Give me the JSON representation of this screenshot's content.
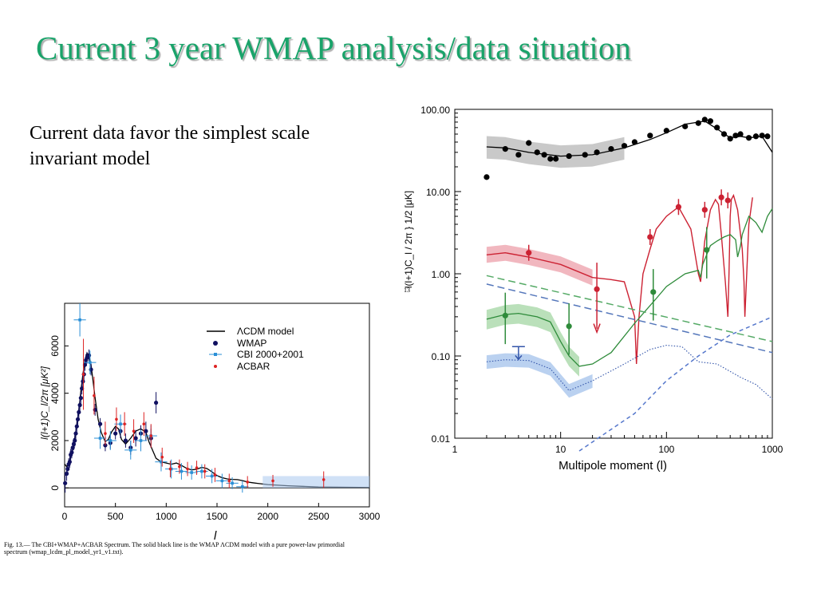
{
  "slide": {
    "title": "Current 3 year WMAP analysis/data  situation",
    "body_text_line1": "Current data favor the simplest scale",
    "body_text_line2": "invariant model"
  },
  "colors": {
    "title": "#1aa36a",
    "tt": "#000000",
    "te": "#cc2233",
    "ee": "#2e8b3a",
    "bb": "#3355aa",
    "wmap": "#101060",
    "cbi": "#2a8fd6",
    "acbar": "#dd2222"
  },
  "chart_data": [
    {
      "type": "line",
      "x_scale": "linear",
      "xlabel": "l",
      "ylabel": "l(l+1)C_l/2π [μK²]",
      "xlim": [
        0,
        3000
      ],
      "ylim": [
        -800,
        7800
      ],
      "xticks": [
        "0",
        "500",
        "1000",
        "1500",
        "2000",
        "2500",
        "3000"
      ],
      "yticks": [
        "0",
        "2000",
        "4000",
        "6000"
      ],
      "legend_position": "top-right",
      "legend": [
        "ΛCDM model",
        "WMAP",
        "CBI 2000+2001",
        "ACBAR"
      ],
      "caption_line1": "Fig. 13.— The CBI+WMAP+ACBAR Spectrum. The solid black line is the WMAP ΛCDM model with a pure power-law primordial",
      "caption_line2": "spectrum (wmap_lcdm_pl_model_yr1_v1.txt).",
      "model": {
        "x": [
          2,
          20,
          40,
          60,
          80,
          100,
          120,
          140,
          160,
          180,
          200,
          220,
          240,
          260,
          280,
          300,
          330,
          360,
          400,
          430,
          460,
          500,
          530,
          560,
          600,
          650,
          700,
          750,
          800,
          830,
          860,
          900,
          950,
          1000,
          1050,
          1100,
          1150,
          1200,
          1250,
          1300,
          1350,
          1400,
          1450,
          1500,
          1550,
          1600,
          1650,
          1700,
          1750,
          1800,
          1850,
          1900,
          2000,
          2200,
          2500,
          3000
        ],
        "y": [
          1000,
          900,
          1050,
          1300,
          1650,
          2100,
          2700,
          3300,
          4100,
          4800,
          5400,
          5700,
          5600,
          5200,
          4500,
          3800,
          2900,
          2350,
          1950,
          2050,
          2350,
          2600,
          2500,
          2050,
          1850,
          2100,
          2400,
          2500,
          2350,
          1950,
          1650,
          1250,
          1100,
          1050,
          1000,
          1050,
          950,
          830,
          760,
          790,
          870,
          820,
          680,
          520,
          430,
          380,
          360,
          350,
          310,
          250,
          220,
          190,
          140,
          90,
          40,
          15
        ]
      },
      "wmap": {
        "x": [
          5,
          20,
          30,
          40,
          50,
          60,
          70,
          80,
          90,
          100,
          110,
          120,
          130,
          140,
          150,
          160,
          170,
          180,
          190,
          200,
          210,
          220,
          240,
          260,
          300,
          350,
          400,
          450,
          500,
          550,
          600,
          650,
          700,
          750,
          800,
          850,
          900
        ],
        "y": [
          200,
          600,
          800,
          1000,
          1100,
          1400,
          1500,
          1700,
          1850,
          2000,
          2300,
          2600,
          2900,
          3200,
          3500,
          3800,
          4200,
          4500,
          4800,
          5200,
          5400,
          5500,
          5600,
          5000,
          3300,
          2700,
          1800,
          1900,
          2300,
          2400,
          2000,
          1700,
          2100,
          2300,
          2400,
          2100,
          3600
        ],
        "err": [
          400,
          300,
          250,
          250,
          250,
          250,
          250,
          250,
          250,
          250,
          250,
          250,
          250,
          250,
          250,
          250,
          250,
          250,
          250,
          250,
          250,
          250,
          250,
          250,
          250,
          250,
          250,
          250,
          250,
          300,
          300,
          300,
          350,
          350,
          400,
          400,
          450
        ]
      },
      "cbi": {
        "x": [
          150,
          250,
          350,
          450,
          550,
          650,
          750,
          850,
          950,
          1050,
          1150,
          1250,
          1350,
          1450,
          1550,
          1650,
          1750
        ],
        "y": [
          7100,
          5300,
          2100,
          2000,
          2700,
          1600,
          2000,
          2200,
          1100,
          800,
          700,
          650,
          700,
          500,
          300,
          200,
          50
        ],
        "err": [
          700,
          500,
          450,
          400,
          400,
          400,
          450,
          450,
          400,
          400,
          350,
          300,
          300,
          300,
          300,
          250,
          250
        ]
      },
      "acbar": {
        "x": [
          185,
          290,
          400,
          510,
          590,
          680,
          780,
          850,
          960,
          1040,
          1130,
          1210,
          1300,
          1380,
          1480,
          1620,
          1800,
          2050,
          2550
        ],
        "y": [
          4800,
          3900,
          2300,
          2900,
          2700,
          2400,
          2700,
          2200,
          1300,
          800,
          900,
          800,
          850,
          700,
          550,
          300,
          250,
          300,
          350
        ],
        "err": [
          1500,
          800,
          500,
          500,
          500,
          500,
          500,
          500,
          400,
          350,
          300,
          300,
          300,
          300,
          300,
          300,
          250,
          250,
          350
        ]
      }
    },
    {
      "type": "line",
      "x_scale": "log",
      "y_scale": "log",
      "xlabel": "Multipole moment (l)",
      "ylabel": "l(l+1)C_l / 2π } 1/2   [μK]",
      "xlim": [
        1,
        1000
      ],
      "ylim": [
        0.01,
        100
      ],
      "xticks": [
        "1",
        "10",
        "100",
        "1000"
      ],
      "yticks": [
        "0.01",
        "0.10",
        "1.00",
        "10.00",
        "100.00"
      ],
      "ylabel_fragment": "13",
      "tt_model": {
        "x": [
          2,
          3,
          5,
          10,
          20,
          40,
          70,
          100,
          150,
          200,
          230,
          300,
          400,
          500,
          600,
          800,
          1000
        ],
        "y": [
          35,
          34,
          30,
          27,
          28,
          34,
          43,
          52,
          66,
          70,
          72,
          58,
          45,
          47,
          45,
          47,
          30
        ]
      },
      "tt_data": {
        "x": [
          2,
          3,
          4,
          5,
          6,
          7,
          8,
          9,
          12,
          17,
          22,
          30,
          40,
          50,
          70,
          100,
          150,
          200,
          230,
          260,
          300,
          350,
          400,
          450,
          500,
          600,
          700,
          800,
          900
        ],
        "y": [
          15,
          33,
          28,
          39,
          30,
          28,
          25,
          25,
          27,
          28,
          30,
          33,
          36,
          40,
          48,
          55,
          62,
          68,
          75,
          72,
          60,
          50,
          44,
          48,
          50,
          45,
          47,
          48,
          47
        ]
      },
      "te_model": {
        "x": [
          2,
          3,
          5,
          10,
          20,
          30,
          40,
          50,
          52,
          55,
          60,
          70,
          80,
          100,
          130,
          170,
          200,
          210,
          230,
          260,
          290,
          310,
          330,
          360,
          380,
          390,
          400,
          410,
          430,
          470,
          520,
          540,
          550,
          600,
          650
        ],
        "y": [
          1.7,
          1.8,
          1.6,
          1.3,
          0.9,
          0.85,
          0.8,
          0.3,
          0.08,
          0.3,
          1.0,
          2.0,
          3.5,
          5.0,
          6.5,
          3.5,
          1.0,
          0.8,
          2.5,
          6.0,
          8.0,
          7.0,
          3.0,
          0.8,
          0.3,
          1.0,
          5.0,
          8.0,
          9.0,
          6.0,
          2.0,
          0.8,
          0.3,
          4.0,
          8.5
        ]
      },
      "te_data": {
        "x": [
          5,
          22,
          70,
          130,
          230,
          330,
          380
        ],
        "y": [
          1.8,
          0.65,
          2.8,
          6.5,
          6.0,
          8.5,
          7.8
        ],
        "upper_limits_x": [
          22
        ]
      },
      "ee_model": {
        "x": [
          2,
          3,
          4,
          6,
          8,
          10,
          12,
          15,
          20,
          30,
          50,
          80,
          100,
          150,
          200,
          210,
          220,
          260,
          300,
          350,
          400,
          450,
          470,
          500,
          520,
          600,
          700,
          800,
          900,
          1000
        ],
        "y": [
          0.28,
          0.32,
          0.33,
          0.3,
          0.26,
          0.15,
          0.1,
          0.075,
          0.08,
          0.11,
          0.25,
          0.5,
          0.7,
          1.0,
          1.1,
          0.9,
          1.3,
          2.2,
          2.5,
          2.8,
          3.0,
          2.6,
          1.6,
          2.2,
          3.0,
          5.0,
          4.2,
          3.2,
          5.0,
          6.2
        ]
      },
      "ee_data": {
        "x": [
          3,
          12,
          75,
          240
        ],
        "y": [
          0.31,
          0.23,
          0.6,
          1.95
        ]
      },
      "bb_lensing": {
        "x": [
          2,
          3,
          5,
          8,
          12,
          20,
          40,
          70,
          100,
          140,
          200,
          300,
          500,
          700,
          1000
        ],
        "y": [
          0.085,
          0.09,
          0.088,
          0.07,
          0.038,
          0.05,
          0.08,
          0.12,
          0.135,
          0.13,
          0.085,
          0.08,
          0.055,
          0.045,
          0.03
        ]
      },
      "bb_upper_limit": {
        "x": [
          4
        ],
        "y": [
          0.13
        ]
      },
      "foreground_green": {
        "x": [
          2,
          1000
        ],
        "y": [
          0.95,
          0.15
        ]
      },
      "foreground_blue": {
        "x": [
          2,
          1000
        ],
        "y": [
          0.75,
          0.11
        ]
      },
      "bb_tensor": {
        "x": [
          15,
          50,
          100,
          200,
          400,
          1000
        ],
        "y": [
          0.007,
          0.02,
          0.05,
          0.1,
          0.18,
          0.3
        ]
      }
    }
  ]
}
